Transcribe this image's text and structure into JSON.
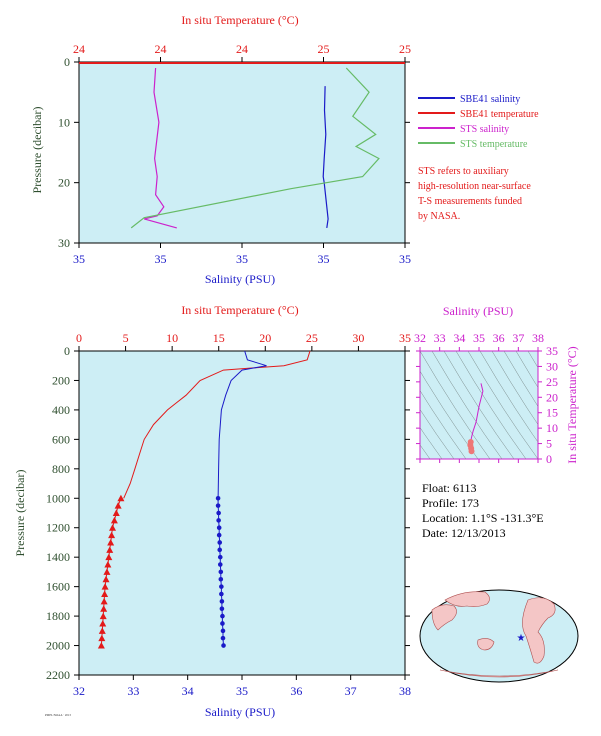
{
  "colors": {
    "background": "#cdeef5",
    "temperature": "#e31a1a",
    "salinity": "#1a1ac8",
    "sts_salinity": "#cc22cc",
    "sts_temperature": "#66bb66",
    "ts_panel_axis": "#cc22cc",
    "pressure_axis": "#2f4f2f"
  },
  "chart_data": [
    {
      "name": "near-surface profile",
      "type": "line",
      "top_xlabel": "In situ Temperature (°C)",
      "top_ticks": [
        "24",
        "24",
        "24",
        "25",
        "25"
      ],
      "bottom_xlabel": "Salinity (PSU)",
      "bottom_ticks": [
        "35",
        "35",
        "35",
        "35",
        "35"
      ],
      "ylabel": "Pressure (decibar)",
      "y_ticks": [
        "0",
        "10",
        "20",
        "30"
      ],
      "ylim": [
        0,
        30
      ],
      "legend": [
        {
          "label": "SBE41 salinity",
          "color": "#1a1ac8"
        },
        {
          "label": "SBE41 temperature",
          "color": "#e31a1a"
        },
        {
          "label": "STS salinity",
          "color": "#cc22cc"
        },
        {
          "label": "STS temperature",
          "color": "#66bb66"
        }
      ],
      "note": [
        "STS refers to auxiliary",
        "high-resolution near-surface",
        "T-S measurements funded",
        "by NASA."
      ],
      "series": [
        {
          "name": "SBE41 salinity",
          "x_frac": [
            0.755,
            0.753,
            0.757,
            0.752,
            0.749,
            0.752,
            0.756,
            0.76,
            0.764,
            0.76
          ],
          "y": [
            4,
            8,
            12,
            16,
            19,
            20,
            22,
            24,
            26,
            27.5
          ]
        },
        {
          "name": "STS salinity",
          "x_frac": [
            0.235,
            0.23,
            0.245,
            0.232,
            0.24,
            0.235,
            0.26,
            0.24,
            0.2,
            0.3
          ],
          "y": [
            1,
            5,
            10,
            16,
            19,
            22,
            24,
            25.5,
            26,
            27.5
          ]
        },
        {
          "name": "STS temperature",
          "x_frac": [
            0.82,
            0.89,
            0.84,
            0.91,
            0.85,
            0.92,
            0.87,
            0.65,
            0.2,
            0.16
          ],
          "y": [
            1,
            5,
            9,
            12,
            14,
            16,
            19,
            21,
            25.8,
            27.5
          ]
        }
      ]
    },
    {
      "name": "full profile",
      "type": "line",
      "top_xlabel": "In situ Temperature (°C)",
      "top_ticks": [
        "0",
        "5",
        "10",
        "15",
        "20",
        "25",
        "30",
        "35"
      ],
      "xlim_temperature": [
        0,
        35
      ],
      "bottom_xlabel": "Salinity (PSU)",
      "bottom_ticks": [
        "32",
        "33",
        "34",
        "35",
        "36",
        "37",
        "38"
      ],
      "xlim_salinity": [
        32,
        38
      ],
      "ylabel": "Pressure (decibar)",
      "y_ticks": [
        "0",
        "200",
        "400",
        "600",
        "800",
        "1000",
        "1200",
        "1400",
        "1600",
        "1800",
        "2000",
        "2200"
      ],
      "ylim": [
        0,
        2200
      ],
      "temperature": {
        "profile": [
          [
            24.8,
            0
          ],
          [
            24.5,
            60
          ],
          [
            22.0,
            100
          ],
          [
            15.5,
            130
          ],
          [
            13.0,
            200
          ],
          [
            11.5,
            300
          ],
          [
            10.5,
            350
          ],
          [
            9.5,
            400
          ],
          [
            8.0,
            500
          ],
          [
            7.0,
            600
          ],
          [
            6.5,
            700
          ],
          [
            6.0,
            800
          ],
          [
            5.5,
            900
          ],
          [
            4.8,
            1000
          ]
        ],
        "markers": [
          [
            4.5,
            1000
          ],
          [
            4.2,
            1050
          ],
          [
            4.0,
            1100
          ],
          [
            3.8,
            1150
          ],
          [
            3.6,
            1200
          ],
          [
            3.5,
            1250
          ],
          [
            3.4,
            1300
          ],
          [
            3.3,
            1350
          ],
          [
            3.2,
            1400
          ],
          [
            3.1,
            1450
          ],
          [
            3.0,
            1500
          ],
          [
            2.9,
            1550
          ],
          [
            2.8,
            1600
          ],
          [
            2.75,
            1650
          ],
          [
            2.7,
            1700
          ],
          [
            2.65,
            1750
          ],
          [
            2.6,
            1800
          ],
          [
            2.55,
            1850
          ],
          [
            2.5,
            1900
          ],
          [
            2.45,
            1950
          ],
          [
            2.4,
            2000
          ]
        ]
      },
      "salinity": {
        "profile": [
          [
            35.05,
            0
          ],
          [
            35.1,
            60
          ],
          [
            35.45,
            100
          ],
          [
            35.0,
            130
          ],
          [
            34.8,
            200
          ],
          [
            34.7,
            300
          ],
          [
            34.62,
            400
          ],
          [
            34.6,
            500
          ],
          [
            34.58,
            600
          ],
          [
            34.57,
            800
          ],
          [
            34.56,
            1000
          ]
        ],
        "markers": [
          [
            34.56,
            1000
          ],
          [
            34.56,
            1050
          ],
          [
            34.57,
            1100
          ],
          [
            34.57,
            1150
          ],
          [
            34.58,
            1200
          ],
          [
            34.58,
            1250
          ],
          [
            34.59,
            1300
          ],
          [
            34.59,
            1350
          ],
          [
            34.6,
            1400
          ],
          [
            34.6,
            1450
          ],
          [
            34.61,
            1500
          ],
          [
            34.61,
            1550
          ],
          [
            34.62,
            1600
          ],
          [
            34.62,
            1650
          ],
          [
            34.63,
            1700
          ],
          [
            34.63,
            1750
          ],
          [
            34.64,
            1800
          ],
          [
            34.64,
            1850
          ],
          [
            34.65,
            1900
          ],
          [
            34.65,
            1950
          ],
          [
            34.66,
            2000
          ]
        ]
      }
    },
    {
      "name": "T-S diagram",
      "type": "scatter",
      "xlabel": "Salinity (PSU)",
      "x_ticks": [
        "32",
        "33",
        "34",
        "35",
        "36",
        "37",
        "38"
      ],
      "xlim": [
        32,
        38
      ],
      "ylabel": "In situ Temperature (°C)",
      "y_ticks": [
        "0",
        "5",
        "10",
        "15",
        "20",
        "25",
        "30",
        "35"
      ],
      "ylim": [
        0,
        35
      ],
      "points": [
        [
          35.1,
          24.5
        ],
        [
          35.2,
          22
        ],
        [
          35.0,
          17
        ],
        [
          34.85,
          12
        ],
        [
          34.7,
          9
        ],
        [
          34.62,
          7
        ],
        [
          34.58,
          5.5
        ],
        [
          34.56,
          4.5
        ],
        [
          34.6,
          3.5
        ],
        [
          34.62,
          2.5
        ]
      ]
    }
  ],
  "float_info": {
    "float": "Float:  6113",
    "profile": "Profile:  173",
    "location": "Location:  1.1°S  -131.3°E",
    "date": "Date:  12/13/2013"
  },
  "footer_stamp": "PMEL/NOAA · 2013"
}
